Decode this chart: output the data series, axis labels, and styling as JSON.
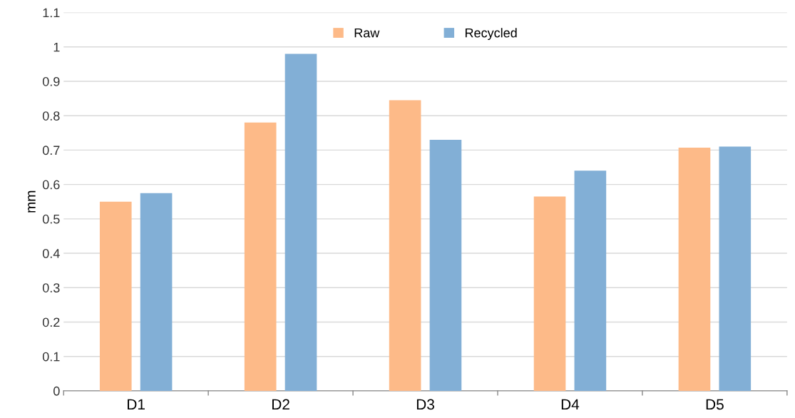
{
  "chart_data": {
    "type": "bar",
    "ylabel": "mm",
    "categories": [
      "D1",
      "D2",
      "D3",
      "D4",
      "D5"
    ],
    "series": [
      {
        "name": "Raw",
        "color": "#fdba88",
        "values": [
          0.55,
          0.78,
          0.845,
          0.565,
          0.707
        ]
      },
      {
        "name": "Recycled",
        "color": "#82afd6",
        "values": [
          0.575,
          0.98,
          0.73,
          0.64,
          0.71
        ]
      }
    ],
    "ylim": [
      0,
      1.1
    ],
    "yticks": [
      0,
      0.1,
      0.2,
      0.3,
      0.4,
      0.5,
      0.6,
      0.7,
      0.8,
      0.9,
      1,
      1.1
    ],
    "grid": "y",
    "legend": "top"
  }
}
